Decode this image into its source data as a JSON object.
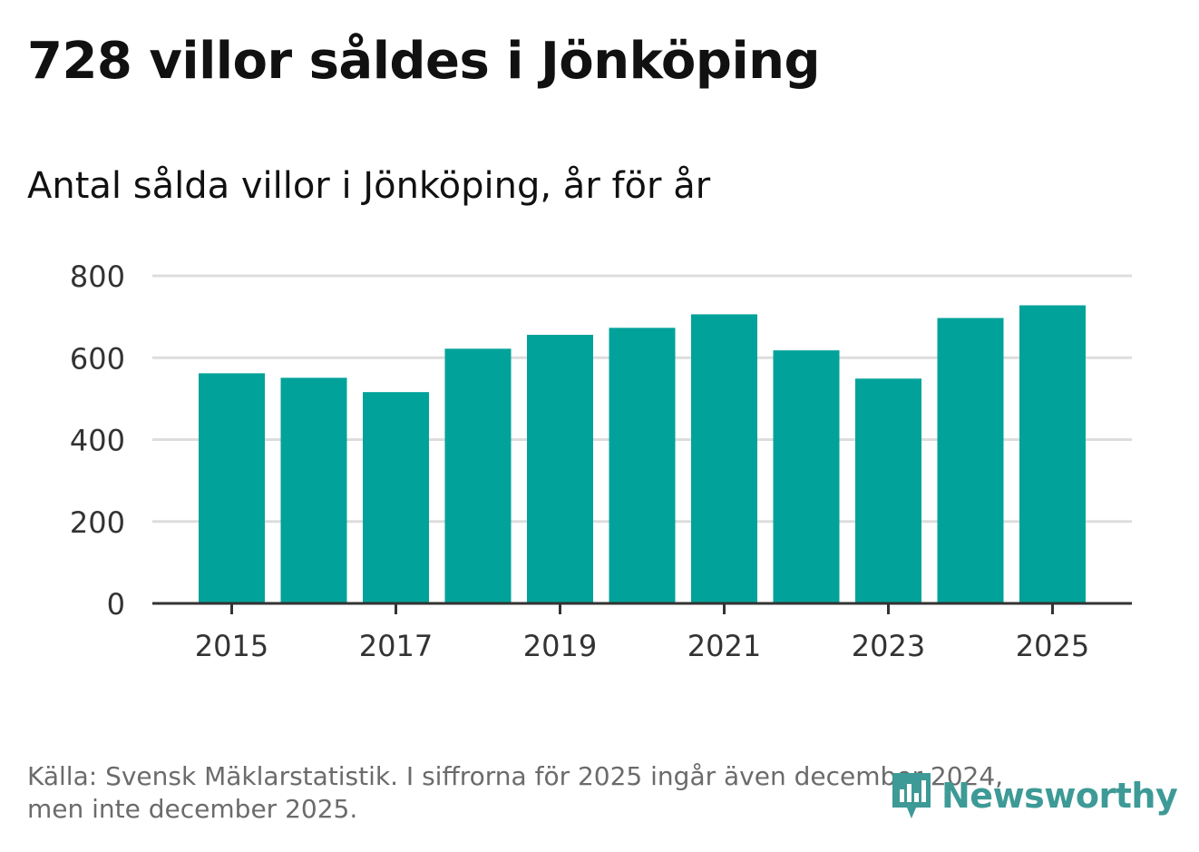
{
  "title": "728 villor såldes i Jönköping",
  "subtitle": "Antal sålda villor i Jönköping, år för år",
  "footer": {
    "line1": "Källa: Svensk Mäklarstatistik. I siffrorna för 2025 ingår även december 2024,",
    "line2": "men inte december 2025."
  },
  "logo": {
    "text": "Newsworthy",
    "icon": "newsworthy-logo-icon"
  },
  "colors": {
    "bar": "#00a29a",
    "grid": "#dddddd",
    "axis": "#333333",
    "footer": "#6b6b6b",
    "logo": "#3d9a96"
  },
  "chart_data": {
    "type": "bar",
    "title": "Antal sålda villor i Jönköping, år för år",
    "xlabel": "",
    "ylabel": "",
    "categories": [
      "2015",
      "2016",
      "2017",
      "2018",
      "2019",
      "2020",
      "2021",
      "2022",
      "2023",
      "2024",
      "2025"
    ],
    "values": [
      562,
      551,
      516,
      622,
      656,
      673,
      706,
      618,
      549,
      697,
      728
    ],
    "ylim": [
      0,
      800
    ],
    "yticks": [
      0,
      200,
      400,
      600,
      800
    ],
    "ytick_labels": [
      "0",
      "200",
      "400",
      "600",
      "800"
    ],
    "xtick_labels": [
      "2015",
      "2017",
      "2019",
      "2021",
      "2023",
      "2025"
    ],
    "grid": true,
    "legend": "none"
  }
}
